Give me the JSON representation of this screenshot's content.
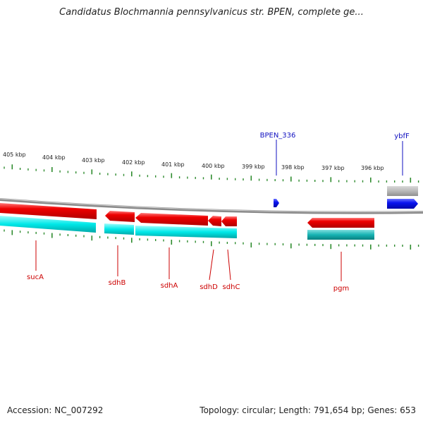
{
  "title": "Candidatus Blochmannia pennsylvanicus str. BPEN, complete ge...",
  "footer": {
    "accession": "Accession: NC_007292",
    "stats": "Topology: circular; Length: 791,654 bp; Genes: 653"
  },
  "colors": {
    "forward_gene": "#0a14f0",
    "reverse_gene": "#ee0000",
    "cds_band": "#00e8e8",
    "backbone": "#8a8a8a",
    "ticks": "#2e8b2e",
    "upper_label": "#1010c0",
    "lower_label": "#cc0000"
  },
  "kbp_labels": [
    "405 kbp",
    "404 kbp",
    "403 kbp",
    "402 kbp",
    "401 kbp",
    "400 kbp",
    "399 kbp",
    "398 kbp",
    "397 kbp",
    "396 kbp"
  ],
  "upper_genes": [
    {
      "name": "BPEN_336",
      "strand": "forward"
    },
    {
      "name": "ybfF",
      "strand": "forward"
    }
  ],
  "lower_genes": [
    {
      "name": "sucA",
      "strand": "reverse"
    },
    {
      "name": "sdhB",
      "strand": "reverse"
    },
    {
      "name": "sdhA",
      "strand": "reverse"
    },
    {
      "name": "sdhD",
      "strand": "reverse"
    },
    {
      "name": "sdhC",
      "strand": "reverse"
    },
    {
      "name": "pgm",
      "strand": "reverse"
    }
  ]
}
